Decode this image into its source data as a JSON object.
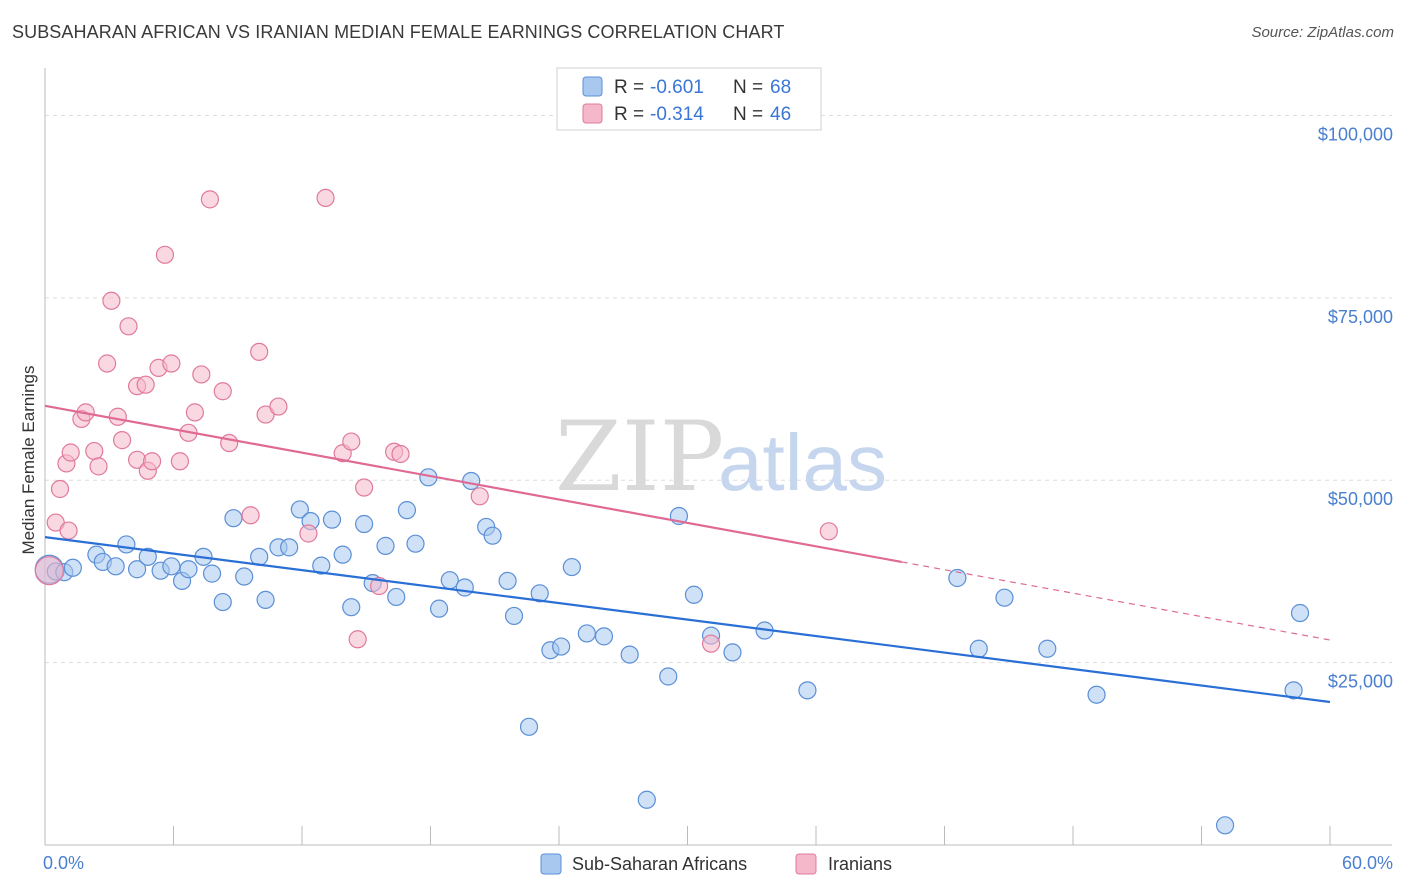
{
  "title": "SUBSAHARAN AFRICAN VS IRANIAN MEDIAN FEMALE EARNINGS CORRELATION CHART",
  "source": "Source: ZipAtlas.com",
  "watermark": {
    "zip": "ZIP",
    "atlas": "atlas"
  },
  "colors": {
    "blue_fill": "#a8c8f0",
    "blue_stroke": "#5b8fd6",
    "blue_line": "#2a6fd6",
    "pink_fill": "#f5b8cb",
    "pink_stroke": "#e07a9c",
    "pink_line": "#e06a93",
    "grid": "#dddddd",
    "tick_text": "#4a7fd0"
  },
  "legend": {
    "rows": [
      {
        "r_label": "R =",
        "r_value": "-0.601",
        "n_label": "N =",
        "n_value": "68"
      },
      {
        "r_label": "R =",
        "r_value": "-0.314",
        "n_label": "N =",
        "n_value": "46"
      }
    ]
  },
  "bottom_legend": [
    "Sub-Saharan Africans",
    "Iranians"
  ],
  "chart_data": {
    "type": "scatter",
    "xlabel": "",
    "ylabel": "Median Female Earnings",
    "xlim": [
      0,
      60
    ],
    "ylim": [
      0,
      105000
    ],
    "x_tick_labels": [
      "0.0%",
      "60.0%"
    ],
    "y_tick_labels": [
      "$25,000",
      "$50,000",
      "$75,000",
      "$100,000"
    ],
    "y_ticks": [
      25000,
      50000,
      75000,
      100000
    ],
    "grid": true,
    "legend_position": "top-center",
    "series": [
      {
        "name": "Sub-Saharan Africans",
        "color": "#a8c8f0",
        "trend": {
          "x": [
            0,
            60
          ],
          "y": [
            42200,
            19600
          ],
          "style": "solid"
        },
        "points": [
          [
            0.2,
            37800
          ],
          [
            0.5,
            37500
          ],
          [
            0.9,
            37400
          ],
          [
            1.3,
            38000
          ],
          [
            2.4,
            39800
          ],
          [
            2.7,
            38800
          ],
          [
            3.3,
            38200
          ],
          [
            3.8,
            41200
          ],
          [
            4.3,
            37800
          ],
          [
            4.8,
            39500
          ],
          [
            5.4,
            37600
          ],
          [
            5.9,
            38200
          ],
          [
            6.4,
            36200
          ],
          [
            6.7,
            37800
          ],
          [
            7.4,
            39500
          ],
          [
            7.8,
            37200
          ],
          [
            8.3,
            33300
          ],
          [
            8.8,
            44800
          ],
          [
            9.3,
            36800
          ],
          [
            10.0,
            39500
          ],
          [
            10.3,
            33600
          ],
          [
            10.9,
            40800
          ],
          [
            11.4,
            40800
          ],
          [
            11.9,
            46000
          ],
          [
            12.4,
            44400
          ],
          [
            12.9,
            38300
          ],
          [
            13.4,
            44600
          ],
          [
            13.9,
            39800
          ],
          [
            14.3,
            32600
          ],
          [
            14.9,
            44000
          ],
          [
            15.3,
            35900
          ],
          [
            15.9,
            41000
          ],
          [
            16.4,
            34000
          ],
          [
            16.9,
            45900
          ],
          [
            17.3,
            41300
          ],
          [
            17.9,
            50400
          ],
          [
            18.4,
            32400
          ],
          [
            18.9,
            36300
          ],
          [
            19.6,
            35300
          ],
          [
            19.9,
            49900
          ],
          [
            20.6,
            43600
          ],
          [
            20.9,
            42400
          ],
          [
            21.6,
            36200
          ],
          [
            21.9,
            31400
          ],
          [
            22.6,
            16200
          ],
          [
            23.1,
            34500
          ],
          [
            23.6,
            26700
          ],
          [
            24.1,
            27200
          ],
          [
            24.6,
            38100
          ],
          [
            25.3,
            29000
          ],
          [
            26.1,
            28600
          ],
          [
            27.3,
            26100
          ],
          [
            28.1,
            6200
          ],
          [
            29.1,
            23100
          ],
          [
            29.6,
            45100
          ],
          [
            30.3,
            34300
          ],
          [
            31.1,
            28700
          ],
          [
            32.1,
            26400
          ],
          [
            33.6,
            29400
          ],
          [
            35.6,
            21200
          ],
          [
            42.6,
            36600
          ],
          [
            43.6,
            26900
          ],
          [
            44.8,
            33900
          ],
          [
            46.8,
            26900
          ],
          [
            49.1,
            20600
          ],
          [
            55.1,
            2700
          ],
          [
            58.3,
            21200
          ],
          [
            58.6,
            31800
          ]
        ]
      },
      {
        "name": "Iranians",
        "color": "#f5b8cb",
        "trend": {
          "x": [
            0,
            40
          ],
          "y": [
            60200,
            38800
          ],
          "style": "solid"
        },
        "trend_extension": {
          "x": [
            40,
            60
          ],
          "y": [
            38800,
            28100
          ],
          "style": "dashed"
        },
        "points": [
          [
            0.2,
            37600
          ],
          [
            0.5,
            44200
          ],
          [
            0.7,
            48800
          ],
          [
            1.1,
            43100
          ],
          [
            1.0,
            52300
          ],
          [
            1.2,
            53800
          ],
          [
            1.7,
            58400
          ],
          [
            1.9,
            59300
          ],
          [
            2.3,
            54000
          ],
          [
            2.5,
            51900
          ],
          [
            2.9,
            66000
          ],
          [
            3.1,
            74600
          ],
          [
            3.4,
            58700
          ],
          [
            3.6,
            55500
          ],
          [
            3.9,
            71100
          ],
          [
            4.3,
            52800
          ],
          [
            4.3,
            62900
          ],
          [
            4.7,
            63100
          ],
          [
            4.8,
            51300
          ],
          [
            5.0,
            52600
          ],
          [
            5.3,
            65400
          ],
          [
            5.6,
            80900
          ],
          [
            5.9,
            66000
          ],
          [
            6.3,
            52600
          ],
          [
            6.7,
            56500
          ],
          [
            7.0,
            59300
          ],
          [
            7.3,
            64500
          ],
          [
            7.7,
            88500
          ],
          [
            8.3,
            62200
          ],
          [
            8.6,
            55100
          ],
          [
            9.6,
            45200
          ],
          [
            10.0,
            67600
          ],
          [
            10.3,
            59000
          ],
          [
            10.9,
            60100
          ],
          [
            12.3,
            42700
          ],
          [
            13.1,
            88700
          ],
          [
            13.9,
            53700
          ],
          [
            14.3,
            55300
          ],
          [
            14.6,
            28200
          ],
          [
            14.9,
            49000
          ],
          [
            15.6,
            35500
          ],
          [
            16.3,
            53900
          ],
          [
            16.6,
            53600
          ],
          [
            20.3,
            47800
          ],
          [
            31.1,
            27600
          ],
          [
            36.6,
            43000
          ]
        ]
      }
    ]
  }
}
